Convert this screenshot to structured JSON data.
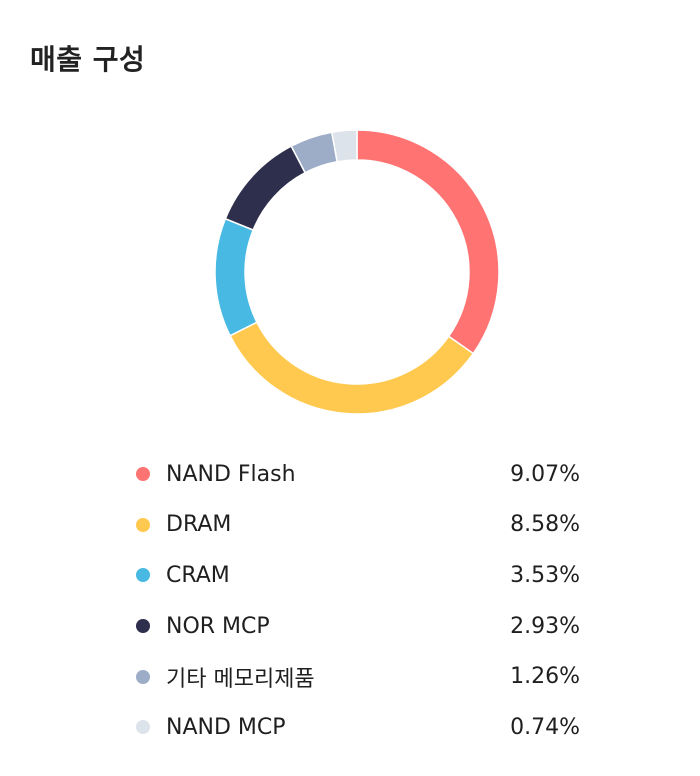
{
  "header": {
    "title": "매출 구성"
  },
  "chart_data": {
    "type": "pie",
    "categories": [
      "NAND Flash",
      "DRAM",
      "CRAM",
      "NOR MCP",
      "기타 메모리제품",
      "NAND MCP"
    ],
    "values": [
      9.07,
      8.58,
      3.53,
      2.93,
      1.26,
      0.74
    ],
    "value_labels": [
      "9.07%",
      "8.58%",
      "3.53%",
      "2.93%",
      "1.26%",
      "0.74%"
    ],
    "colors": [
      "#ff7373",
      "#ffc94f",
      "#47b9e3",
      "#2e2e4d",
      "#9dadc8",
      "#dde3ea"
    ],
    "title": "매출 구성",
    "legend_position": "bottom"
  }
}
